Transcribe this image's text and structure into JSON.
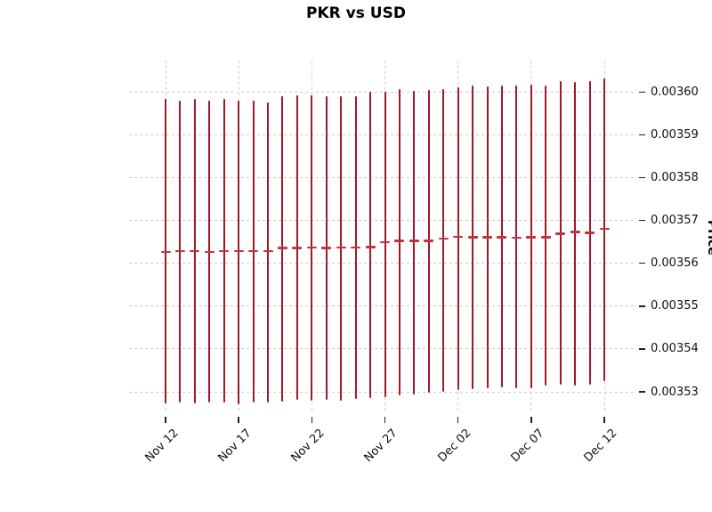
{
  "title": "PKR vs USD",
  "axes": {
    "y_label": "Price",
    "y_ticks": [
      {
        "label": "0.00360",
        "value": 0.0036
      },
      {
        "label": "0.00359",
        "value": 0.00359
      },
      {
        "label": "0.00358",
        "value": 0.00358
      },
      {
        "label": "0.00357",
        "value": 0.00357
      },
      {
        "label": "0.00356",
        "value": 0.00356
      },
      {
        "label": "0.00355",
        "value": 0.00355
      },
      {
        "label": "0.00354",
        "value": 0.00354
      },
      {
        "label": "0.00353",
        "value": 0.00353
      }
    ],
    "x_ticks": [
      {
        "label": "Nov 12",
        "index": 0
      },
      {
        "label": "Nov 17",
        "index": 5
      },
      {
        "label": "Nov 22",
        "index": 10
      },
      {
        "label": "Nov 27",
        "index": 15
      },
      {
        "label": "Dec 02",
        "index": 20
      },
      {
        "label": "Dec 07",
        "index": 25
      },
      {
        "label": "Dec 12",
        "index": 30
      }
    ]
  },
  "colors": {
    "highlow_line": "#9e1a2b",
    "close_tick": "#c43440",
    "grid": "#cbcbcb",
    "text": "#111111",
    "background": "#ffffff"
  },
  "chart_data": {
    "type": "bar",
    "variant": "high-low-close",
    "title": "PKR vs USD",
    "xlabel": "",
    "ylabel": "Price",
    "ylim": [
      0.0035248,
      0.0036073
    ],
    "grid": true,
    "legend": false,
    "x": [
      "Nov 12",
      "Nov 13",
      "Nov 14",
      "Nov 15",
      "Nov 16",
      "Nov 17",
      "Nov 18",
      "Nov 19",
      "Nov 20",
      "Nov 21",
      "Nov 22",
      "Nov 23",
      "Nov 24",
      "Nov 25",
      "Nov 26",
      "Nov 27",
      "Nov 28",
      "Nov 29",
      "Nov 30",
      "Dec 01",
      "Dec 02",
      "Dec 03",
      "Dec 04",
      "Dec 05",
      "Dec 06",
      "Dec 07",
      "Dec 08",
      "Dec 09",
      "Dec 10",
      "Dec 11",
      "Dec 12"
    ],
    "series": [
      {
        "name": "high",
        "values": [
          0.0035983,
          0.003598,
          0.0035983,
          0.003598,
          0.0035983,
          0.0035979,
          0.003598,
          0.0035976,
          0.0035991,
          0.0035993,
          0.0035993,
          0.003599,
          0.003599,
          0.0035991,
          0.0036,
          0.0036001,
          0.0036007,
          0.0036003,
          0.0036005,
          0.0036007,
          0.0036012,
          0.0036015,
          0.0036014,
          0.0036015,
          0.0036015,
          0.0036017,
          0.0036015,
          0.0036026,
          0.0036024,
          0.0036026,
          0.0036032
        ]
      },
      {
        "name": "low",
        "values": [
          0.0035273,
          0.0035274,
          0.0035272,
          0.0035274,
          0.0035276,
          0.003527,
          0.0035274,
          0.0035276,
          0.0035278,
          0.0035281,
          0.0035279,
          0.0035281,
          0.0035279,
          0.0035283,
          0.0035286,
          0.0035288,
          0.0035292,
          0.0035293,
          0.0035297,
          0.0035299,
          0.0035304,
          0.0035307,
          0.0035308,
          0.003531,
          0.0035308,
          0.0035308,
          0.0035314,
          0.0035317,
          0.0035315,
          0.0035317,
          0.0035325
        ]
      },
      {
        "name": "close",
        "values": [
          0.0035627,
          0.0035628,
          0.0035628,
          0.0035627,
          0.0035628,
          0.0035628,
          0.0035629,
          0.0035629,
          0.0035636,
          0.0035636,
          0.0035637,
          0.0035636,
          0.0035637,
          0.0035637,
          0.0035638,
          0.0035649,
          0.0035652,
          0.0035652,
          0.0035652,
          0.0035658,
          0.0035662,
          0.0035661,
          0.0035661,
          0.0035661,
          0.003566,
          0.0035661,
          0.0035661,
          0.0035669,
          0.0035673,
          0.0035671,
          0.0035681
        ]
      }
    ]
  }
}
